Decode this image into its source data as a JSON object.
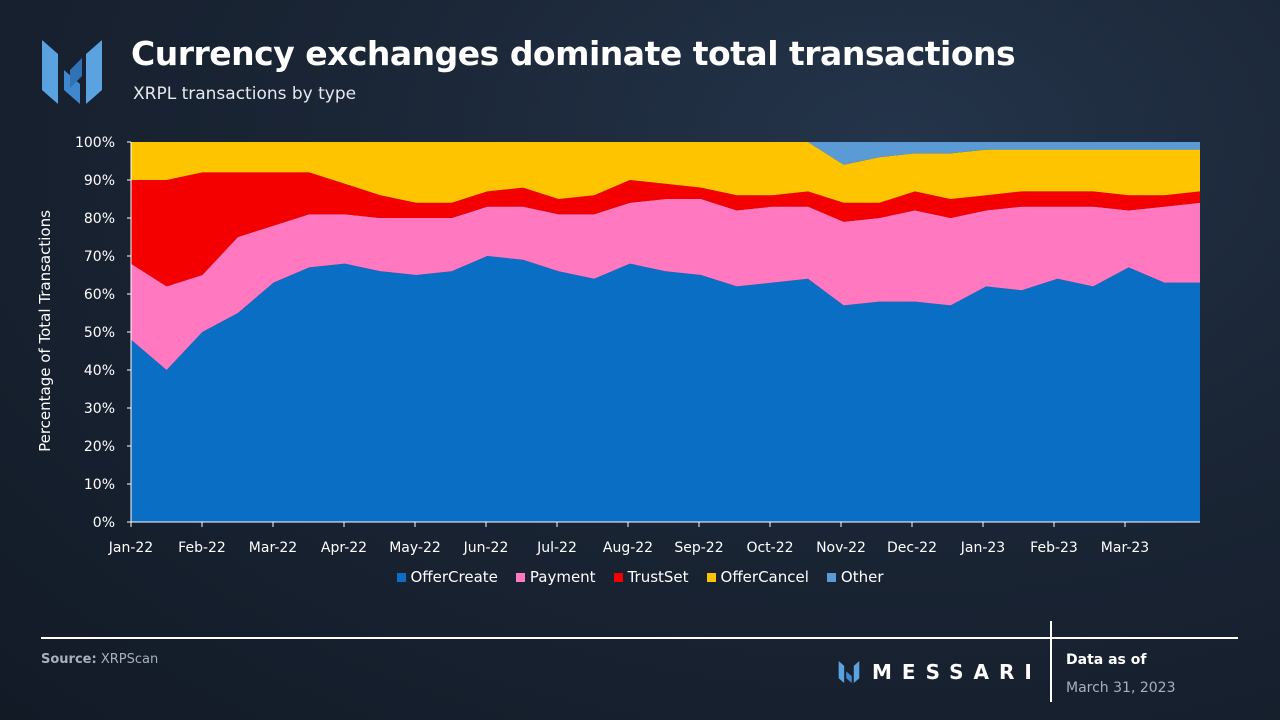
{
  "header": {
    "title": "Currency exchanges dominate total transactions",
    "subtitle": "XRPL transactions by type"
  },
  "footer": {
    "source_label": "Source:",
    "source_value": "XRPScan",
    "brand": "MESSARI",
    "data_as_of_label": "Data as of",
    "data_as_of_date": "March 31, 2023"
  },
  "colors": {
    "OfferCreate": "#0a6ec5",
    "Payment": "#ff78c0",
    "TrustSet": "#f50000",
    "OfferCancel": "#ffc400",
    "Other": "#5b9bd5"
  },
  "legend": [
    "OfferCreate",
    "Payment",
    "TrustSet",
    "OfferCancel",
    "Other"
  ],
  "chart_data": {
    "type": "area",
    "stacked": "percent",
    "title": "XRPL transactions by type",
    "xlabel": "",
    "ylabel": "Percentage of Total Transactions",
    "ylim": [
      0,
      100
    ],
    "yticks": [
      "0%",
      "10%",
      "20%",
      "30%",
      "40%",
      "50%",
      "60%",
      "70%",
      "80%",
      "90%",
      "100%"
    ],
    "grid": false,
    "legend_position": "bottom",
    "xticks": [
      "Jan-22",
      "Feb-22",
      "Mar-22",
      "Apr-22",
      "May-22",
      "Jun-22",
      "Jul-22",
      "Aug-22",
      "Sep-22",
      "Oct-22",
      "Nov-22",
      "Dec-22",
      "Jan-23",
      "Feb-23",
      "Mar-23"
    ],
    "x": [
      "Jan-22",
      "Jan-22b",
      "Feb-22",
      "Feb-22b",
      "Mar-22",
      "Mar-22b",
      "Apr-22",
      "Apr-22b",
      "May-22",
      "May-22b",
      "Jun-22",
      "Jun-22b",
      "Jul-22",
      "Jul-22b",
      "Aug-22",
      "Aug-22b",
      "Sep-22",
      "Sep-22b",
      "Oct-22",
      "Oct-22b",
      "Nov-22",
      "Nov-22b",
      "Dec-22",
      "Dec-22b",
      "Jan-23",
      "Jan-23b",
      "Feb-23",
      "Feb-23b",
      "Mar-23",
      "Mar-23b",
      "Mar-23c"
    ],
    "series": [
      {
        "name": "OfferCreate",
        "values": [
          48,
          40,
          50,
          55,
          63,
          67,
          68,
          66,
          65,
          66,
          70,
          69,
          66,
          64,
          68,
          66,
          65,
          62,
          63,
          64,
          57,
          58,
          58,
          57,
          62,
          61,
          64,
          62,
          67,
          63,
          63
        ]
      },
      {
        "name": "Payment",
        "values": [
          20,
          22,
          15,
          20,
          15,
          14,
          13,
          14,
          15,
          14,
          13,
          14,
          15,
          17,
          16,
          19,
          20,
          20,
          20,
          19,
          22,
          22,
          24,
          23,
          20,
          22,
          19,
          21,
          15,
          20,
          21
        ]
      },
      {
        "name": "TrustSet",
        "values": [
          22,
          28,
          27,
          17,
          14,
          11,
          8,
          6,
          4,
          4,
          4,
          5,
          4,
          5,
          6,
          4,
          3,
          4,
          3,
          4,
          5,
          4,
          5,
          5,
          4,
          4,
          4,
          4,
          4,
          3,
          3
        ]
      },
      {
        "name": "OfferCancel",
        "values": [
          10,
          10,
          8,
          8,
          8,
          8,
          11,
          14,
          16,
          16,
          13,
          12,
          15,
          14,
          10,
          11,
          12,
          14,
          14,
          13,
          10,
          12,
          10,
          12,
          12,
          11,
          11,
          11,
          12,
          12,
          11
        ]
      },
      {
        "name": "Other",
        "values": [
          0,
          0,
          0,
          0,
          0,
          0,
          0,
          0,
          0,
          0,
          0,
          0,
          0,
          0,
          0,
          0,
          0,
          0,
          0,
          0,
          6,
          4,
          3,
          3,
          2,
          2,
          2,
          2,
          2,
          2,
          2
        ]
      }
    ]
  }
}
